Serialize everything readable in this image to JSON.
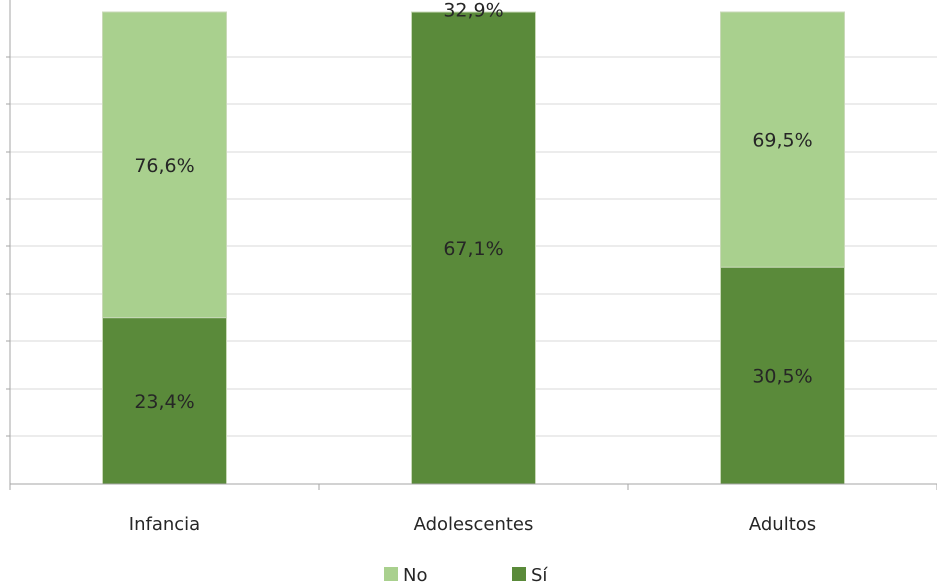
{
  "chart_data": {
    "type": "bar",
    "stacked": true,
    "percent_stacked": true,
    "categories": [
      "Infancia",
      "Adolescentes",
      "Adultos"
    ],
    "series": [
      {
        "name": "Sí",
        "values": [
          23.4,
          67.1,
          30.5
        ],
        "labels": [
          "23,4%",
          "67,1%",
          "30,5%"
        ],
        "color": "#5a8a3a"
      },
      {
        "name": "No",
        "values": [
          76.6,
          32.9,
          69.5
        ],
        "labels": [
          "76,6%",
          "32,9%",
          "69,5%"
        ],
        "color": "#a9d08e"
      }
    ],
    "legend": {
      "position": "bottom",
      "order": [
        "No",
        "Sí"
      ]
    },
    "ylim": [
      0,
      100
    ],
    "grid": true,
    "title": "",
    "xlabel": "",
    "ylabel": ""
  }
}
